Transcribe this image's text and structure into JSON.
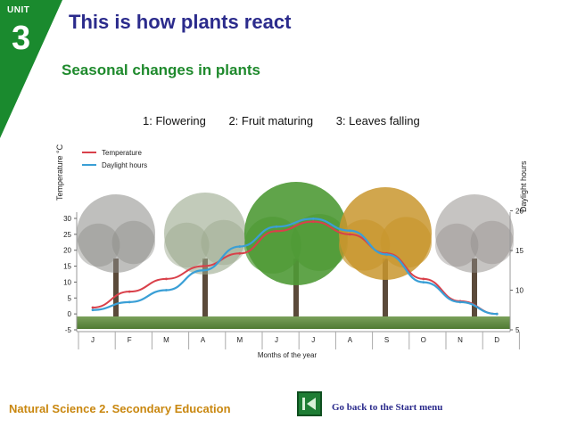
{
  "unit": {
    "label": "UNIT",
    "number": "3"
  },
  "header": {
    "title": "This is how plants react",
    "subtitle": "Seasonal changes in plants"
  },
  "annotations": [
    "1: Flowering",
    "2: Fruit maturing",
    "3: Leaves falling"
  ],
  "footer": {
    "course": "Natural Science 2. Secondary Education",
    "home_link": "Go back to the Start menu"
  },
  "colors": {
    "unit_band": "#1a8a2e",
    "title": "#2b2b8c",
    "subtitle": "#1f8a2d",
    "temperature": "#d9404a",
    "daylight": "#3a9fd6",
    "footer": "#c9870f"
  },
  "chart_data": {
    "type": "line",
    "x": [
      "J",
      "F",
      "M",
      "A",
      "M",
      "J",
      "J",
      "A",
      "S",
      "O",
      "N",
      "D"
    ],
    "xlabel": "Months of the year",
    "y_left_label": "Temperature °C",
    "y_right_label": "Daylight hours",
    "y_left_ticks": [
      -5,
      0,
      5,
      10,
      15,
      20,
      25,
      30
    ],
    "y_right_ticks": [
      5,
      10,
      15,
      20
    ],
    "y_left_range": [
      -5,
      30
    ],
    "y_right_range": [
      5,
      25
    ],
    "series": [
      {
        "name": "Temperature",
        "axis": "left",
        "values": [
          2,
          7,
          11,
          15,
          19,
          26,
          29,
          25,
          19,
          11,
          4,
          0
        ]
      },
      {
        "name": "Daylight hours",
        "axis": "right",
        "values": [
          7.5,
          8.5,
          10,
          12.5,
          15.5,
          18,
          19,
          17.5,
          14.5,
          11,
          8.5,
          7
        ]
      }
    ],
    "legend_position": "top-left",
    "grid": false
  }
}
